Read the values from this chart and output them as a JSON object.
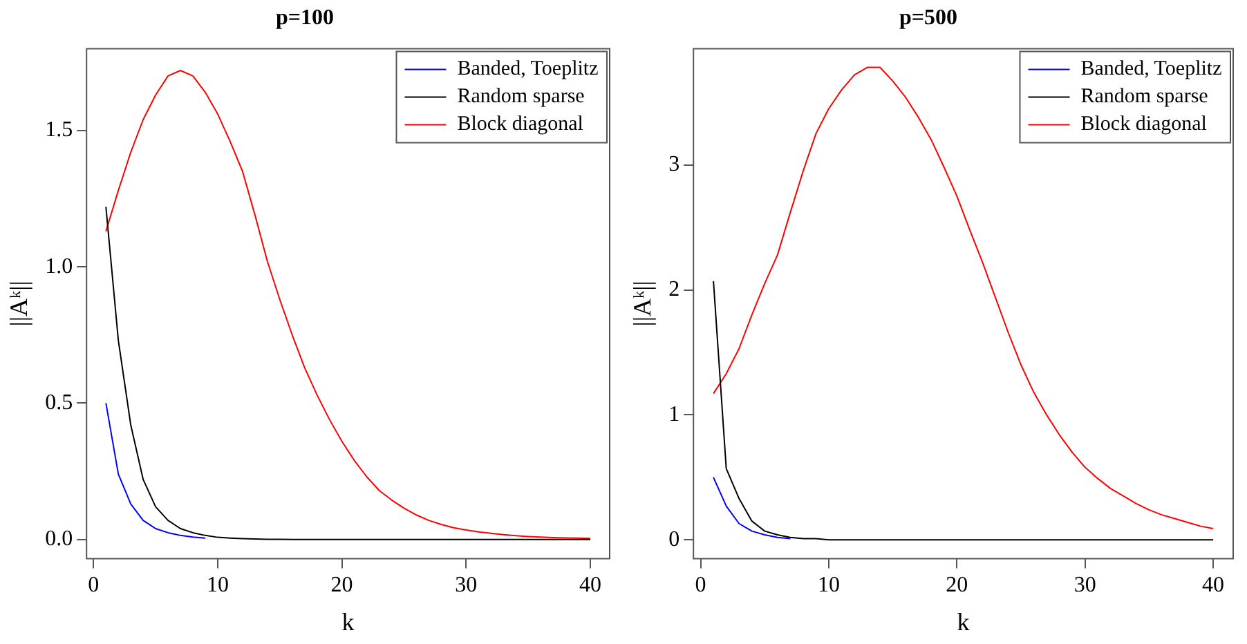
{
  "chart_data": [
    {
      "type": "line",
      "title": "p=100",
      "xlabel": "k",
      "ylabel": "||Aᵏ||",
      "xlim": [
        -0.56,
        41.56
      ],
      "xticks": [
        0,
        10,
        20,
        30,
        40
      ],
      "ylim": [
        -0.07,
        1.8
      ],
      "yticks": [
        {
          "value": 0,
          "label": "0.0"
        },
        {
          "value": 0.5,
          "label": "0.5"
        },
        {
          "value": 1,
          "label": "1.0"
        },
        {
          "value": 1.5,
          "label": "1.5"
        }
      ],
      "grid": false,
      "legend": "top right",
      "marker": "none",
      "line_style": "solid",
      "x": [
        1,
        2,
        3,
        4,
        5,
        6,
        7,
        8,
        9,
        10,
        11,
        12,
        13,
        14,
        15,
        16,
        17,
        18,
        19,
        20,
        21,
        22,
        23,
        24,
        25,
        26,
        27,
        28,
        29,
        30,
        31,
        32,
        33,
        34,
        35,
        36,
        37,
        38,
        39,
        40
      ],
      "series": [
        {
          "name": "Banded, Toeplitz",
          "color": "#0000ff",
          "values": [
            0.5,
            0.24,
            0.13,
            0.07,
            0.04,
            0.025,
            0.015,
            0.009,
            0.005,
            null,
            null,
            null,
            null,
            null,
            null,
            null,
            null,
            null,
            null,
            null,
            null,
            null,
            null,
            null,
            null,
            null,
            null,
            null,
            null,
            null,
            null,
            null,
            null,
            null,
            null,
            null,
            null,
            null,
            null,
            null
          ]
        },
        {
          "name": "Random sparse",
          "color": "#000000",
          "values": [
            1.22,
            0.73,
            0.42,
            0.22,
            0.12,
            0.07,
            0.04,
            0.025,
            0.015,
            0.008,
            0.005,
            0.003,
            0.002,
            0.001,
            0.001,
            0,
            0,
            0,
            0,
            0,
            0,
            0,
            0,
            0,
            0,
            0,
            0,
            0,
            0,
            0,
            0,
            0,
            0,
            0,
            0,
            0,
            0,
            0,
            0,
            0
          ]
        },
        {
          "name": "Block diagonal",
          "color": "#ff0000",
          "values": [
            1.13,
            1.28,
            1.42,
            1.54,
            1.63,
            1.7,
            1.72,
            1.7,
            1.64,
            1.56,
            1.46,
            1.35,
            1.19,
            1.02,
            0.88,
            0.75,
            0.63,
            0.53,
            0.44,
            0.36,
            0.29,
            0.23,
            0.18,
            0.145,
            0.115,
            0.09,
            0.07,
            0.055,
            0.043,
            0.035,
            0.028,
            0.023,
            0.018,
            0.014,
            0.011,
            0.009,
            0.007,
            0.006,
            0.005,
            0.004
          ]
        }
      ]
    },
    {
      "type": "line",
      "title": "p=500",
      "xlabel": "k",
      "ylabel": "||Aᵏ||",
      "xlim": [
        -0.56,
        41.56
      ],
      "xticks": [
        0,
        10,
        20,
        30,
        40
      ],
      "ylim": [
        -0.15,
        3.93
      ],
      "yticks": [
        0,
        1,
        2,
        3
      ],
      "grid": false,
      "legend": "top right",
      "marker": "none",
      "line_style": "solid",
      "x": [
        1,
        2,
        3,
        4,
        5,
        6,
        7,
        8,
        9,
        10,
        11,
        12,
        13,
        14,
        15,
        16,
        17,
        18,
        19,
        20,
        21,
        22,
        23,
        24,
        25,
        26,
        27,
        28,
        29,
        30,
        31,
        32,
        33,
        34,
        35,
        36,
        37,
        38,
        39,
        40
      ],
      "series": [
        {
          "name": "Banded, Toeplitz",
          "color": "#0000ff",
          "values": [
            0.5,
            0.27,
            0.13,
            0.07,
            0.04,
            0.02,
            0.01,
            null,
            null,
            null,
            null,
            null,
            null,
            null,
            null,
            null,
            null,
            null,
            null,
            null,
            null,
            null,
            null,
            null,
            null,
            null,
            null,
            null,
            null,
            null,
            null,
            null,
            null,
            null,
            null,
            null,
            null,
            null,
            null,
            null
          ]
        },
        {
          "name": "Random sparse",
          "color": "#000000",
          "values": [
            2.07,
            0.57,
            0.33,
            0.15,
            0.07,
            0.04,
            0.02,
            0.01,
            0.01,
            0,
            0,
            0,
            0,
            0,
            0,
            0,
            0,
            0,
            0,
            0,
            0,
            0,
            0,
            0,
            0,
            0,
            0,
            0,
            0,
            0,
            0,
            0,
            0,
            0,
            0,
            0,
            0,
            0,
            0,
            0
          ]
        },
        {
          "name": "Block diagonal",
          "color": "#ff0000",
          "values": [
            1.17,
            1.33,
            1.53,
            1.8,
            2.05,
            2.28,
            2.62,
            2.95,
            3.25,
            3.45,
            3.6,
            3.72,
            3.78,
            3.78,
            3.67,
            3.54,
            3.38,
            3.2,
            2.98,
            2.75,
            2.48,
            2.22,
            1.94,
            1.66,
            1.4,
            1.18,
            1.0,
            0.84,
            0.7,
            0.58,
            0.49,
            0.41,
            0.35,
            0.29,
            0.24,
            0.2,
            0.17,
            0.14,
            0.11,
            0.09
          ]
        }
      ]
    }
  ]
}
